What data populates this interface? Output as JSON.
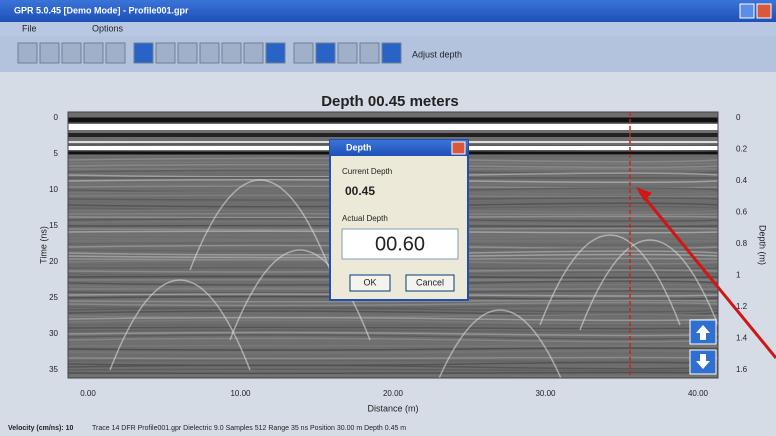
{
  "window": {
    "title": "GPR 5.0.45 [Demo Mode] - Profile001.gpr",
    "menu": [
      "File",
      "Options"
    ],
    "toolbar_label": "Adjust depth"
  },
  "view": {
    "heading": "Depth  00.45 meters",
    "left_axis": {
      "title": "Time (ns)",
      "ticks": [
        "0",
        "5",
        "10",
        "15",
        "20",
        "25",
        "30",
        "35"
      ]
    },
    "right_axis": {
      "title": "Depth (m)",
      "ticks": [
        "0",
        "0.2",
        "0.4",
        "0.6",
        "0.8",
        "1",
        "1.2",
        "1.4",
        "1.6"
      ]
    },
    "bottom_axis": {
      "title": "Distance (m)",
      "ticks": [
        "0.00",
        "10.00",
        "20.00",
        "30.00",
        "40.00"
      ]
    }
  },
  "dialog": {
    "title": "Depth",
    "current_label": "Current Depth",
    "current_value": "00.45",
    "actual_label": "Actual Depth",
    "actual_value": "00.60",
    "ok": "OK",
    "cancel": "Cancel"
  },
  "status_bar": {
    "label": "Velocity (cm/ns): 10",
    "text": "Trace 14  DFR  Profile001.gpr  Dielectric 9.0  Samples 512  Range 35 ns  Position 30.00 m  Depth 0.45 m"
  }
}
